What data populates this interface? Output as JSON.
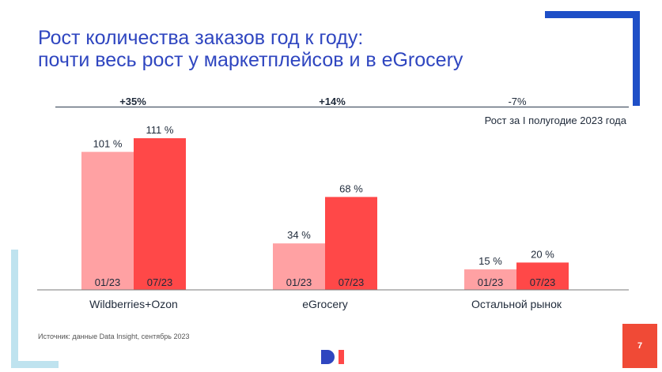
{
  "title": {
    "line1": "Рост количества заказов год к году:",
    "line2": "почти весь рост у маркетплейсов и в eGrocery"
  },
  "subtitle": "Рост за I полугодие 2023 года",
  "growth": [
    "+35%",
    "+14%",
    "-7%"
  ],
  "source": "Источник: данные Data Insight, сентябрь 2023",
  "page_number": "7",
  "colors": {
    "light": "#ffa1a3",
    "dark": "#ff4848",
    "accent": "#2f46c0"
  },
  "chart_data": {
    "type": "bar",
    "categories": [
      "Wildberries+Ozon",
      "eGrocery",
      "Остальной рынок"
    ],
    "series": [
      {
        "name": "01/23",
        "values": [
          101,
          34,
          15
        ],
        "labels": [
          "101 %",
          "34 %",
          "15 %"
        ]
      },
      {
        "name": "07/23",
        "values": [
          111,
          68,
          20
        ],
        "labels": [
          "111 %",
          "68 %",
          "20 %"
        ]
      }
    ],
    "ylim": [
      0,
      111
    ]
  }
}
